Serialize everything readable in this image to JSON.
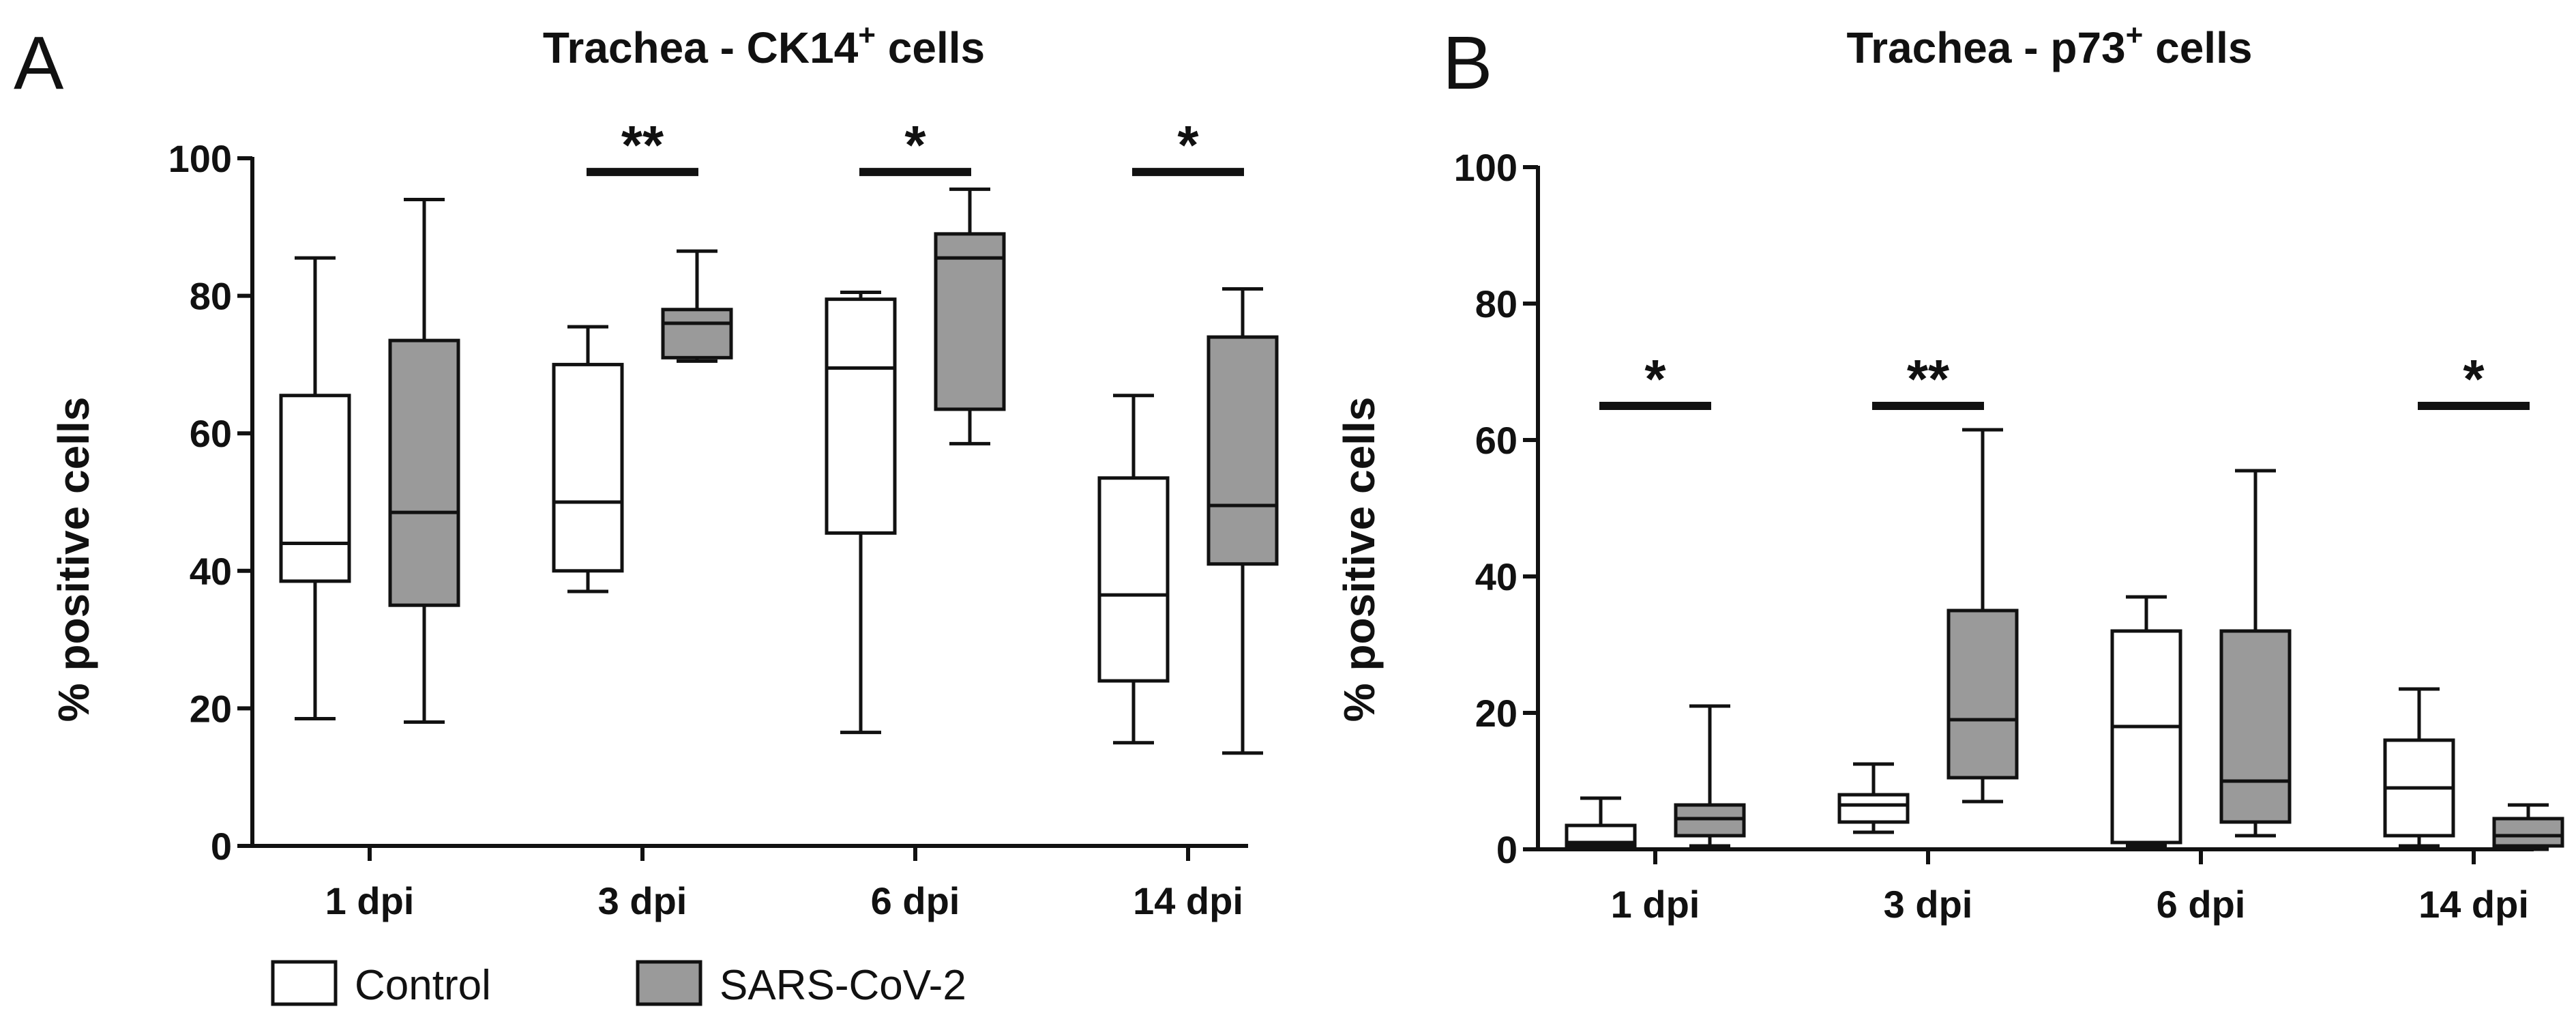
{
  "legend": {
    "items": [
      {
        "label": "Control",
        "color": "#ffffff"
      },
      {
        "label": "SARS-CoV-2",
        "color": "#9a9a9a"
      }
    ],
    "position": "bottom-left"
  },
  "chart_data": [
    {
      "panel": "A",
      "type": "box",
      "title": "Trachea - CK14",
      "title_sup": "+",
      "title_suffix": " cells",
      "ylabel": "% positive cells",
      "xlabel": "",
      "ylim": [
        0,
        100
      ],
      "yticks": [
        0,
        20,
        40,
        60,
        80,
        100
      ],
      "categories": [
        "1 dpi",
        "3 dpi",
        "6 dpi",
        "14 dpi"
      ],
      "grid": false,
      "series": [
        {
          "name": "Control",
          "color": "#ffffff",
          "boxes": [
            {
              "min": 18.5,
              "q1": 38.5,
              "median": 44,
              "q3": 65.5,
              "max": 85.5
            },
            {
              "min": 37,
              "q1": 40,
              "median": 50,
              "q3": 70,
              "max": 75.5
            },
            {
              "min": 16.5,
              "q1": 45.5,
              "median": 69.5,
              "q3": 79.5,
              "max": 80.5
            },
            {
              "min": 15,
              "q1": 24,
              "median": 36.5,
              "q3": 53.5,
              "max": 65.5
            }
          ]
        },
        {
          "name": "SARS-CoV-2",
          "color": "#9a9a9a",
          "boxes": [
            {
              "min": 18,
              "q1": 35,
              "median": 48.5,
              "q3": 73.5,
              "max": 94
            },
            {
              "min": 70.5,
              "q1": 71,
              "median": 76,
              "q3": 78,
              "max": 86.5
            },
            {
              "min": 58.5,
              "q1": 63.5,
              "median": 85.5,
              "q3": 89,
              "max": 95.5
            },
            {
              "min": 13.5,
              "q1": 41,
              "median": 49.5,
              "q3": 74,
              "max": 81
            }
          ]
        }
      ],
      "significance": [
        {
          "category": "3 dpi",
          "label": "**",
          "y": 98
        },
        {
          "category": "6 dpi",
          "label": "*",
          "y": 98
        },
        {
          "category": "14 dpi",
          "label": "*",
          "y": 98
        }
      ]
    },
    {
      "panel": "B",
      "type": "box",
      "title": "Trachea - p73",
      "title_sup": "+",
      "title_suffix": " cells",
      "ylabel": "% positive cells",
      "xlabel": "",
      "ylim": [
        0,
        100
      ],
      "yticks": [
        0,
        20,
        40,
        60,
        80,
        100
      ],
      "categories": [
        "1 dpi",
        "3 dpi",
        "6 dpi",
        "14 dpi"
      ],
      "grid": false,
      "series": [
        {
          "name": "Control",
          "color": "#ffffff",
          "boxes": [
            {
              "min": 0,
              "q1": 0.5,
              "median": 1,
              "q3": 3.5,
              "max": 7.5
            },
            {
              "min": 2.5,
              "q1": 4,
              "median": 6.5,
              "q3": 8,
              "max": 12.5
            },
            {
              "min": 0.5,
              "q1": 1,
              "median": 18,
              "q3": 32,
              "max": 37
            },
            {
              "min": 0.5,
              "q1": 2,
              "median": 9,
              "q3": 16,
              "max": 23.5
            }
          ]
        },
        {
          "name": "SARS-CoV-2",
          "color": "#9a9a9a",
          "boxes": [
            {
              "min": 0.5,
              "q1": 2,
              "median": 4.5,
              "q3": 6.5,
              "max": 21
            },
            {
              "min": 7,
              "q1": 10.5,
              "median": 19,
              "q3": 35,
              "max": 61.5
            },
            {
              "min": 2,
              "q1": 4,
              "median": 10,
              "q3": 32,
              "max": 55.5
            },
            {
              "min": 0,
              "q1": 0.5,
              "median": 2,
              "q3": 4.5,
              "max": 6.5
            }
          ]
        }
      ],
      "significance": [
        {
          "category": "1 dpi",
          "label": "*",
          "y": 65
        },
        {
          "category": "3 dpi",
          "label": "**",
          "y": 65
        },
        {
          "category": "14 dpi",
          "label": "*",
          "y": 65
        }
      ]
    }
  ]
}
